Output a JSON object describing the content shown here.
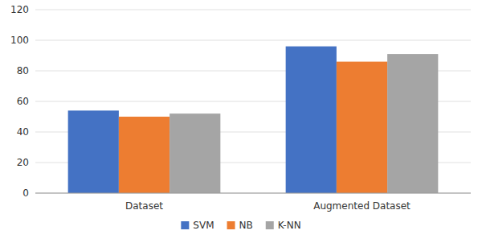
{
  "chart_data": {
    "type": "bar",
    "categories": [
      "Dataset",
      "Augmented Dataset"
    ],
    "series": [
      {
        "name": "SVM",
        "color": "#4472C4",
        "values": [
          54,
          96
        ]
      },
      {
        "name": "NB",
        "color": "#ED7D31",
        "values": [
          50,
          86
        ]
      },
      {
        "name": "K-NN",
        "color": "#A5A5A5",
        "values": [
          52,
          91
        ]
      }
    ],
    "ylim": [
      0,
      120
    ],
    "yticks": [
      0,
      20,
      40,
      60,
      80,
      100,
      120
    ],
    "grid": true,
    "legend": "bottom"
  }
}
